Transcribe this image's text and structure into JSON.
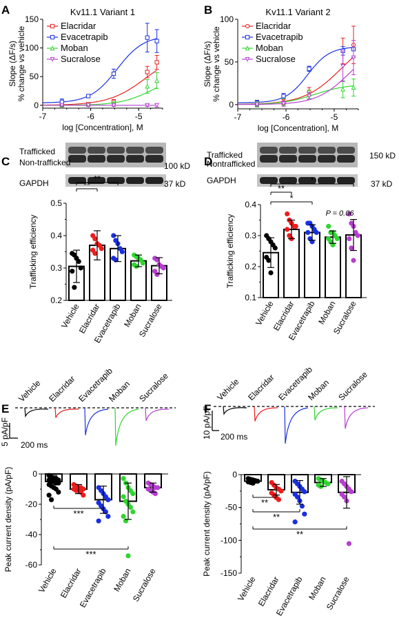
{
  "colors": {
    "Elacridar": "#ee1c1c",
    "Evacetrapib": "#1a2fe0",
    "Moban": "#2fd62f",
    "Sucralose": "#b73fd0",
    "Vehicle": "#000000"
  },
  "panel_letters": [
    "A",
    "B",
    "C",
    "D",
    "E",
    "F"
  ],
  "chart_data": [
    {
      "panel": "A",
      "type": "line",
      "title": "Kv11.1 Variant 1",
      "xlabel": "log [Concentration], M",
      "ylabel": [
        "Slope (ΔF/s)",
        "% change vs vehicle"
      ],
      "xlim": [
        -7,
        -4.5
      ],
      "ylim": [
        -5,
        150
      ],
      "xticks": [
        -7,
        -6,
        -5
      ],
      "yticks": [
        0,
        50,
        100,
        150
      ],
      "legend": "top-left",
      "series": [
        {
          "name": "Elacridar",
          "marker": "square",
          "x": [
            -6.6,
            -6.05,
            -5.52,
            -4.82,
            -4.62
          ],
          "y": [
            1,
            2,
            6,
            58,
            75
          ],
          "err": [
            2,
            2,
            4,
            10,
            12
          ]
        },
        {
          "name": "Evacetrapib",
          "marker": "square",
          "x": [
            -6.6,
            -6.05,
            -5.52,
            -4.82,
            -4.62
          ],
          "y": [
            6,
            16,
            55,
            118,
            112
          ],
          "err": [
            5,
            3,
            8,
            25,
            20
          ]
        },
        {
          "name": "Moban",
          "marker": "triangle",
          "x": [
            -6.6,
            -6.05,
            -5.52,
            -4.82,
            -4.62
          ],
          "y": [
            0,
            1,
            3,
            33,
            43
          ],
          "err": [
            2,
            2,
            3,
            12,
            14
          ]
        },
        {
          "name": "Sucralose",
          "marker": "triangle-down",
          "x": [
            -6.6,
            -6.05,
            -5.52,
            -4.82,
            -4.62
          ],
          "y": [
            0,
            0,
            0,
            0,
            0
          ],
          "err": [
            2,
            2,
            2,
            2,
            3
          ]
        }
      ]
    },
    {
      "panel": "B",
      "type": "line",
      "title": "Kv11.1 Variant 2",
      "xlabel": "log [Concentration], M",
      "ylabel": [
        "Slope (ΔF/s)",
        "% change vs vehicle"
      ],
      "xlim": [
        -7,
        -4.5
      ],
      "ylim": [
        -5,
        100
      ],
      "xticks": [
        -7,
        -6,
        -5
      ],
      "yticks": [
        0,
        50,
        100
      ],
      "legend": "top-left",
      "series": [
        {
          "name": "Elacridar",
          "marker": "circle",
          "x": [
            -6.6,
            -6.05,
            -5.52,
            -4.82,
            -4.6
          ],
          "y": [
            2,
            3,
            15,
            63,
            70
          ],
          "err": [
            3,
            3,
            5,
            15,
            22
          ]
        },
        {
          "name": "Evacetrapib",
          "marker": "square",
          "x": [
            -6.6,
            -6.05,
            -5.52,
            -4.82,
            -4.6
          ],
          "y": [
            2,
            10,
            42,
            63,
            65
          ],
          "err": [
            3,
            3,
            3,
            5,
            10
          ]
        },
        {
          "name": "Moban",
          "marker": "triangle",
          "x": [
            -6.6,
            -6.05,
            -5.52,
            -4.82,
            -4.6
          ],
          "y": [
            0,
            3,
            12,
            18,
            20
          ],
          "err": [
            3,
            4,
            5,
            10,
            10
          ]
        },
        {
          "name": "Sucralose",
          "marker": "triangle-down",
          "x": [
            -6.6,
            -6.05,
            -5.52,
            -4.82,
            -4.6
          ],
          "y": [
            0,
            1,
            10,
            45,
            55
          ],
          "err": [
            2,
            3,
            4,
            18,
            20
          ]
        }
      ]
    },
    {
      "panel": "C",
      "type": "bar",
      "categories": [
        "Vehicle",
        "Elacridar",
        "Evacetrapib",
        "Moban",
        "Sucralose"
      ],
      "values": [
        0.305,
        0.37,
        0.36,
        0.322,
        0.307
      ],
      "err": [
        0.05,
        0.045,
        0.04,
        0.018,
        0.025
      ],
      "points": [
        [
          0.345,
          0.34,
          0.33,
          0.32,
          0.3,
          0.29,
          0.24
        ],
        [
          0.4,
          0.39,
          0.375,
          0.37,
          0.36,
          0.355,
          0.345
        ],
        [
          0.4,
          0.385,
          0.375,
          0.36,
          0.35,
          0.33,
          0.325
        ],
        [
          0.34,
          0.335,
          0.33,
          0.325,
          0.315,
          0.31,
          0.305
        ],
        [
          0.33,
          0.325,
          0.31,
          0.305,
          0.3,
          0.29,
          0.28
        ]
      ],
      "ylabel": "Trafficking efficiency",
      "ylim": [
        0.2,
        0.5
      ],
      "yticks": [
        "0.2",
        "0.3",
        "0.4",
        "0.5"
      ],
      "significance": [
        {
          "from": "Vehicle",
          "to": "Elacridar",
          "label": "**"
        },
        {
          "from": "Vehicle",
          "to": "Evacetrapib",
          "label": "**"
        }
      ],
      "blot": {
        "left_labels": [
          "Trafficked",
          "Non-trafficked",
          "GAPDH"
        ],
        "right_labels": [
          "100 kD",
          "37 kD"
        ]
      }
    },
    {
      "panel": "D",
      "type": "bar",
      "categories": [
        "Vehicle",
        "Elacridar",
        "Evacetrapib",
        "Moban",
        "Sucralose"
      ],
      "values": [
        0.245,
        0.32,
        0.31,
        0.295,
        0.302
      ],
      "err": [
        0.048,
        0.03,
        0.025,
        0.02,
        0.05
      ],
      "points": [
        [
          0.3,
          0.29,
          0.28,
          0.27,
          0.26,
          0.23,
          0.22,
          0.18
        ],
        [
          0.37,
          0.35,
          0.34,
          0.33,
          0.33,
          0.32,
          0.3,
          0.29
        ],
        [
          0.34,
          0.34,
          0.33,
          0.32,
          0.31,
          0.31,
          0.29,
          0.28
        ],
        [
          0.33,
          0.31,
          0.31,
          0.3,
          0.29,
          0.29,
          0.28,
          0.27
        ],
        [
          0.37,
          0.34,
          0.33,
          0.31,
          0.3,
          0.29,
          0.26,
          0.22
        ]
      ],
      "ylabel": "Trafficking efficiency",
      "ylim": [
        0.1,
        0.4
      ],
      "yticks": [
        "0.1",
        "0.2",
        "0.3",
        "0.4"
      ],
      "significance": [
        {
          "from": "Vehicle",
          "to": "Elacridar",
          "label": "**"
        },
        {
          "from": "Vehicle",
          "to": "Evacetrapib",
          "label": "*"
        },
        {
          "from": "Vehicle",
          "to": "Sucralose",
          "label": "*"
        }
      ],
      "annotations": [
        {
          "category": "Moban",
          "text": "P = 0.06"
        }
      ],
      "blot": {
        "left_labels": [
          "Trafficked",
          "Nontrafficked",
          "GAPDH"
        ],
        "right_labels": [
          "150 kD",
          "37 kD"
        ]
      }
    },
    {
      "panel": "E",
      "type": "bar",
      "categories": [
        "Vehicle",
        "Elacridar",
        "Evacetrapib",
        "Moban",
        "Sucralose"
      ],
      "values": [
        -5,
        -10,
        -17,
        -18,
        -9
      ],
      "err": [
        4,
        3,
        9,
        12,
        3
      ],
      "points": [
        [
          -1,
          -2,
          -3,
          -3,
          -4,
          -4,
          -5,
          -5,
          -6,
          -6,
          -7,
          -8,
          -9,
          -10,
          -12,
          -14,
          -17
        ],
        [
          -7,
          -8,
          -9,
          -9,
          -10,
          -10,
          -11,
          -11,
          -12,
          -14
        ],
        [
          -9,
          -11,
          -13,
          -15,
          -17,
          -19,
          -21,
          -23,
          -25,
          -28,
          -31
        ],
        [
          -3,
          -6,
          -9,
          -11,
          -13,
          -15,
          -18,
          -20,
          -22,
          -25,
          -28,
          -31,
          -54
        ],
        [
          -6,
          -7,
          -8,
          -9,
          -9,
          -10,
          -11,
          -12,
          -13
        ]
      ],
      "ylabel": "Peak current density (pA/pF)",
      "ylim": [
        -60,
        0
      ],
      "yticks": [
        "0",
        "-20",
        "-40",
        "-60"
      ],
      "significance": [
        {
          "from": "Vehicle",
          "to": "Evacetrapib",
          "label": "***"
        },
        {
          "from": "Vehicle",
          "to": "Moban",
          "label": "***"
        }
      ],
      "trace_labels": [
        "Vehicle",
        "Elacridar",
        "Evacetrapib",
        "Moban",
        "Sucralose"
      ],
      "trace_depths": [
        0.55,
        0.65,
        1.8,
        2.5,
        0.85
      ],
      "scale_bar": {
        "vertical": "5 pA/pF",
        "horizontal": "200 ms"
      }
    },
    {
      "panel": "F",
      "type": "bar",
      "categories": [
        "Vehicle",
        "Elacridar",
        "Evacetrapib",
        "Moban",
        "Sucralose"
      ],
      "values": [
        -10,
        -23,
        -27,
        -12,
        -27
      ],
      "err": [
        3,
        8,
        18,
        6,
        24
      ],
      "points": [
        [
          -6,
          -7,
          -8,
          -9,
          -10,
          -11,
          -12,
          -13
        ],
        [
          -12,
          -16,
          -20,
          -22,
          -25,
          -28,
          -31,
          -35,
          -38
        ],
        [
          -10,
          -14,
          -18,
          -22,
          -26,
          -30,
          -34,
          -40,
          -48,
          -60,
          -72
        ],
        [
          -6,
          -8,
          -10,
          -12,
          -14,
          -16,
          -18
        ],
        [
          -10,
          -14,
          -18,
          -22,
          -26,
          -30,
          -34,
          -40,
          -105
        ]
      ],
      "ylabel": "Peak current density (pA/pF)",
      "ylim": [
        -150,
        0
      ],
      "yticks": [
        "0",
        "-50",
        "-100",
        "-150"
      ],
      "significance": [
        {
          "from": "Vehicle",
          "to": "Elacridar",
          "label": "**"
        },
        {
          "from": "Vehicle",
          "to": "Evacetrapib",
          "label": "**"
        },
        {
          "from": "Vehicle",
          "to": "Sucralose",
          "label": "**"
        }
      ],
      "trace_labels": [
        "Vehicle",
        "Elacridar",
        "Evacetrapib",
        "Moban",
        "Sucralose"
      ],
      "trace_depths": [
        0.6,
        1.2,
        3.0,
        1.1,
        1.8
      ],
      "scale_bar": {
        "vertical": "10 pA/pF",
        "horizontal": "200 ms"
      }
    }
  ]
}
